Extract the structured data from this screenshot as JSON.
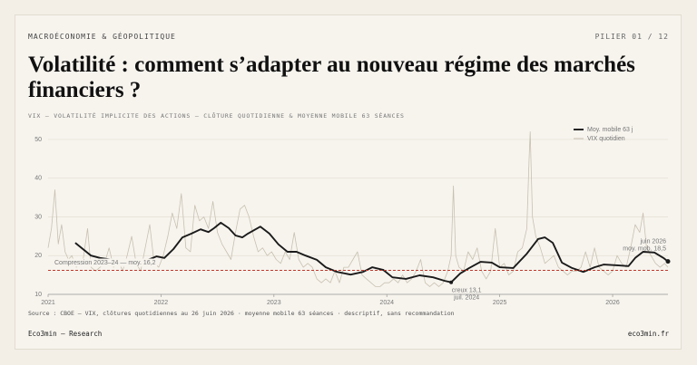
{
  "header": {
    "kicker": "MACROÉCONOMIE & GÉOPOLITIQUE",
    "pillar": "PILIER 01 / 12",
    "title": "Volatilité : comment s’adapter au nouveau régime des marchés financiers ?"
  },
  "chart_data": {
    "type": "line",
    "subtitle": "VIX — VOLATILITÉ IMPLICITE DES ACTIONS — CLÔTURE QUOTIDIENNE & MOYENNE MOBILE 63 SÉANCES",
    "xlim": [
      2021,
      2026.49
    ],
    "xticks": [
      2021,
      2022,
      2023,
      2024,
      2025,
      2026
    ],
    "ylim": [
      10,
      52
    ],
    "yticks": [
      10,
      20,
      30,
      40,
      50
    ],
    "grid": true,
    "legend": "top-right",
    "series": [
      {
        "name": "VIX quotidien",
        "color": "#c8c1b1",
        "x": [
          2021.0,
          2021.03,
          2021.06,
          2021.09,
          2021.12,
          2021.15,
          2021.18,
          2021.21,
          2021.25,
          2021.28,
          2021.31,
          2021.35,
          2021.38,
          2021.42,
          2021.46,
          2021.5,
          2021.54,
          2021.58,
          2021.62,
          2021.66,
          2021.7,
          2021.74,
          2021.78,
          2021.82,
          2021.86,
          2021.9,
          2021.94,
          2021.98,
          2022.02,
          2022.06,
          2022.1,
          2022.14,
          2022.18,
          2022.22,
          2022.26,
          2022.3,
          2022.34,
          2022.38,
          2022.42,
          2022.46,
          2022.5,
          2022.54,
          2022.58,
          2022.62,
          2022.66,
          2022.7,
          2022.74,
          2022.78,
          2022.82,
          2022.86,
          2022.9,
          2022.94,
          2022.98,
          2023.02,
          2023.06,
          2023.1,
          2023.14,
          2023.18,
          2023.22,
          2023.26,
          2023.3,
          2023.34,
          2023.38,
          2023.42,
          2023.46,
          2023.5,
          2023.54,
          2023.58,
          2023.62,
          2023.66,
          2023.7,
          2023.74,
          2023.78,
          2023.82,
          2023.86,
          2023.9,
          2023.94,
          2023.98,
          2024.02,
          2024.06,
          2024.1,
          2024.14,
          2024.18,
          2024.22,
          2024.26,
          2024.3,
          2024.34,
          2024.38,
          2024.42,
          2024.46,
          2024.5,
          2024.54,
          2024.57,
          2024.59,
          2024.61,
          2024.64,
          2024.68,
          2024.72,
          2024.76,
          2024.8,
          2024.84,
          2024.88,
          2024.92,
          2024.96,
          2025.0,
          2025.04,
          2025.08,
          2025.12,
          2025.16,
          2025.2,
          2025.24,
          2025.26,
          2025.27,
          2025.29,
          2025.32,
          2025.36,
          2025.4,
          2025.44,
          2025.48,
          2025.52,
          2025.56,
          2025.6,
          2025.64,
          2025.68,
          2025.72,
          2025.76,
          2025.8,
          2025.84,
          2025.88,
          2025.92,
          2025.96,
          2026.0,
          2026.04,
          2026.08,
          2026.12,
          2026.16,
          2026.2,
          2026.24,
          2026.27,
          2026.3,
          2026.34,
          2026.38,
          2026.42,
          2026.46,
          2026.49
        ],
        "values": [
          22,
          27,
          37,
          23,
          28,
          21,
          19,
          20,
          17,
          18,
          19,
          27,
          17,
          16,
          17,
          18,
          22,
          17,
          19,
          16,
          20,
          25,
          18,
          16,
          22,
          28,
          18,
          17,
          20,
          25,
          31,
          27,
          36,
          22,
          21,
          33,
          29,
          30,
          27,
          34,
          26,
          23,
          21,
          19,
          26,
          32,
          33,
          30,
          25,
          21,
          22,
          20,
          21,
          19,
          18,
          21,
          19,
          26,
          19,
          17,
          18,
          17,
          14,
          13,
          14,
          13,
          16,
          13,
          17,
          17,
          19,
          21,
          15,
          14,
          13,
          12,
          12,
          13,
          13,
          14,
          13,
          15,
          13,
          14,
          16,
          19,
          13,
          12,
          13,
          12,
          13,
          16,
          20,
          38,
          20,
          17,
          16,
          21,
          19,
          22,
          16,
          14,
          16,
          27,
          17,
          18,
          15,
          16,
          21,
          22,
          27,
          45,
          52,
          30,
          25,
          22,
          18,
          19,
          20,
          17,
          16,
          15,
          16,
          16,
          17,
          21,
          17,
          22,
          17,
          16,
          15,
          16,
          20,
          18,
          17,
          22,
          28,
          26,
          31,
          22,
          20,
          18,
          17,
          18,
          17
        ]
      },
      {
        "name": "Moy. mobile 63 j",
        "color": "#1a1a1a",
        "x": [
          2021.24,
          2021.3,
          2021.38,
          2021.46,
          2021.62,
          2021.78,
          2021.9,
          2021.96,
          2022.03,
          2022.11,
          2022.19,
          2022.27,
          2022.35,
          2022.42,
          2022.47,
          2022.53,
          2022.6,
          2022.66,
          2022.72,
          2022.77,
          2022.88,
          2022.96,
          2023.04,
          2023.12,
          2023.2,
          2023.28,
          2023.38,
          2023.46,
          2023.56,
          2023.68,
          2023.79,
          2023.87,
          2023.97,
          2024.05,
          2024.17,
          2024.29,
          2024.41,
          2024.51,
          2024.57,
          2024.65,
          2024.73,
          2024.83,
          2024.93,
          2025.0,
          2025.12,
          2025.24,
          2025.34,
          2025.4,
          2025.47,
          2025.55,
          2025.64,
          2025.74,
          2025.84,
          2025.92,
          2026.04,
          2026.14,
          2026.2,
          2026.27,
          2026.37,
          2026.45,
          2026.49
        ],
        "values": [
          23.3,
          21.9,
          20,
          19.4,
          18.7,
          18.2,
          19.1,
          19.8,
          19.4,
          21.7,
          24.7,
          25.7,
          26.8,
          26.1,
          27.1,
          28.5,
          27.1,
          25.2,
          24.7,
          25.7,
          27.5,
          25.7,
          22.9,
          21,
          21,
          20,
          18.9,
          17,
          15.8,
          15.1,
          15.8,
          17,
          16.3,
          14.4,
          14,
          14.9,
          14.4,
          13.5,
          13.1,
          15.4,
          16.8,
          18.4,
          18.2,
          17,
          16.8,
          20.5,
          24.3,
          24.7,
          23.3,
          18.2,
          16.8,
          15.8,
          17,
          17.7,
          17.5,
          17.3,
          19.4,
          21,
          20.8,
          19.4,
          18.5
        ]
      }
    ],
    "reference_line": {
      "value": 16.2,
      "label": "Compression 2023–24 — moy. 16,2",
      "color": "#c0392b"
    },
    "annotations": [
      {
        "x": 2024.57,
        "value": 13.1,
        "label": "creux 13,1",
        "date": "juil. 2024"
      },
      {
        "x": 2026.49,
        "value": 18.5,
        "label": "moy. mob. 18,5",
        "date": "juin 2026"
      }
    ]
  },
  "source": "Source : CBOE — VIX, clôtures quotidiennes au 26 juin 2026 · moyenne mobile 63 séances · descriptif, sans recommandation",
  "footer": {
    "left": "Eco3min — Research",
    "right": "eco3min.fr"
  }
}
